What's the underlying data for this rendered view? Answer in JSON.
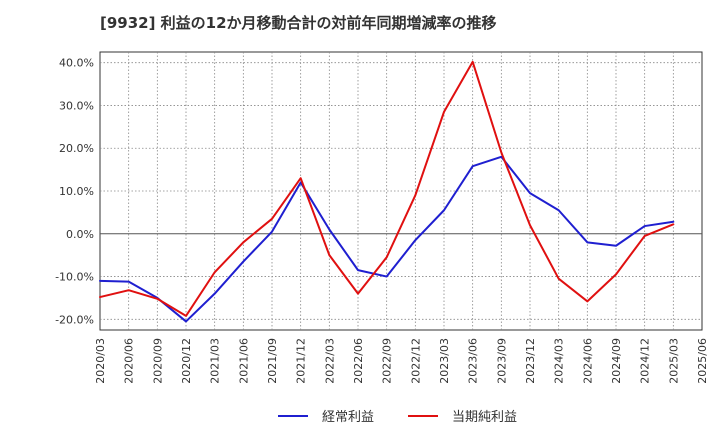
{
  "chart_data": {
    "type": "line",
    "title": "[9932]  利益の12か月移動合計の対前年同期増減率の推移",
    "xlabel": "",
    "ylabel": "",
    "ylim": [
      -22.5,
      42.5
    ],
    "yticks": [
      -20,
      -10,
      0,
      10,
      20,
      30,
      40
    ],
    "ytick_labels": [
      "-20.0%",
      "-10.0%",
      "0.0%",
      "10.0%",
      "20.0%",
      "30.0%",
      "40.0%"
    ],
    "categories": [
      "2020/03",
      "2020/06",
      "2020/09",
      "2020/12",
      "2021/03",
      "2021/06",
      "2021/09",
      "2021/12",
      "2022/03",
      "2022/06",
      "2022/09",
      "2022/12",
      "2023/03",
      "2023/06",
      "2023/09",
      "2023/12",
      "2024/03",
      "2024/06",
      "2024/09",
      "2024/12",
      "2025/03",
      "2025/06"
    ],
    "grid": true,
    "legend_position": "bottom",
    "series": [
      {
        "name": "経常利益",
        "color": "#1f1fd0",
        "values": [
          -11.0,
          -11.2,
          -15.0,
          -20.5,
          -14.0,
          -6.5,
          0.5,
          12.0,
          1.0,
          -8.5,
          -10.0,
          -1.5,
          5.5,
          15.8,
          18.0,
          9.5,
          5.5,
          -2.0,
          -2.8,
          1.8,
          2.8,
          null
        ]
      },
      {
        "name": "当期純利益",
        "color": "#e01010",
        "values": [
          -14.8,
          -13.2,
          -15.2,
          -19.2,
          -9.0,
          -2.0,
          3.5,
          13.0,
          -5.0,
          -14.0,
          -5.5,
          9.0,
          28.5,
          40.2,
          19.0,
          2.0,
          -10.5,
          -15.8,
          -9.5,
          -0.5,
          2.2,
          null
        ]
      }
    ]
  }
}
